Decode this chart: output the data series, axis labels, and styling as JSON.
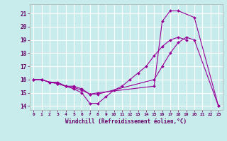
{
  "xlabel": "Windchill (Refroidissement éolien,°C)",
  "bg_color": "#c8ecec",
  "line_color": "#990099",
  "grid_color": "#ffffff",
  "xlim": [
    -0.5,
    23.5
  ],
  "ylim": [
    13.7,
    21.7
  ],
  "xticks": [
    0,
    1,
    2,
    3,
    4,
    5,
    6,
    7,
    8,
    9,
    10,
    11,
    12,
    13,
    14,
    15,
    16,
    17,
    18,
    19,
    20,
    21,
    22,
    23
  ],
  "yticks": [
    14,
    15,
    16,
    17,
    18,
    19,
    20,
    21
  ],
  "line1_x": [
    0,
    1,
    2,
    3,
    4,
    5,
    6,
    7,
    8,
    9,
    10,
    11,
    12,
    13,
    14,
    15,
    16,
    17,
    18,
    19
  ],
  "line1_y": [
    16,
    16,
    15.8,
    15.8,
    15.5,
    15.3,
    15.0,
    14.2,
    14.2,
    14.7,
    15.2,
    15.5,
    16.0,
    16.5,
    17.0,
    17.8,
    18.5,
    19.0,
    19.2,
    19.0
  ],
  "line2_x": [
    0,
    1,
    2,
    3,
    4,
    5,
    6,
    7,
    8,
    15,
    16,
    17,
    18,
    20,
    23
  ],
  "line2_y": [
    16,
    16,
    15.8,
    15.7,
    15.5,
    15.5,
    15.3,
    14.9,
    15.0,
    15.5,
    20.4,
    21.2,
    21.2,
    20.7,
    14.0
  ],
  "line3_x": [
    0,
    1,
    2,
    3,
    4,
    5,
    6,
    7,
    8,
    15,
    16,
    17,
    18,
    19,
    20,
    23
  ],
  "line3_y": [
    16,
    16,
    15.8,
    15.7,
    15.5,
    15.4,
    15.2,
    14.9,
    14.9,
    16.0,
    17.0,
    18.0,
    18.8,
    19.2,
    19.0,
    14.0
  ]
}
